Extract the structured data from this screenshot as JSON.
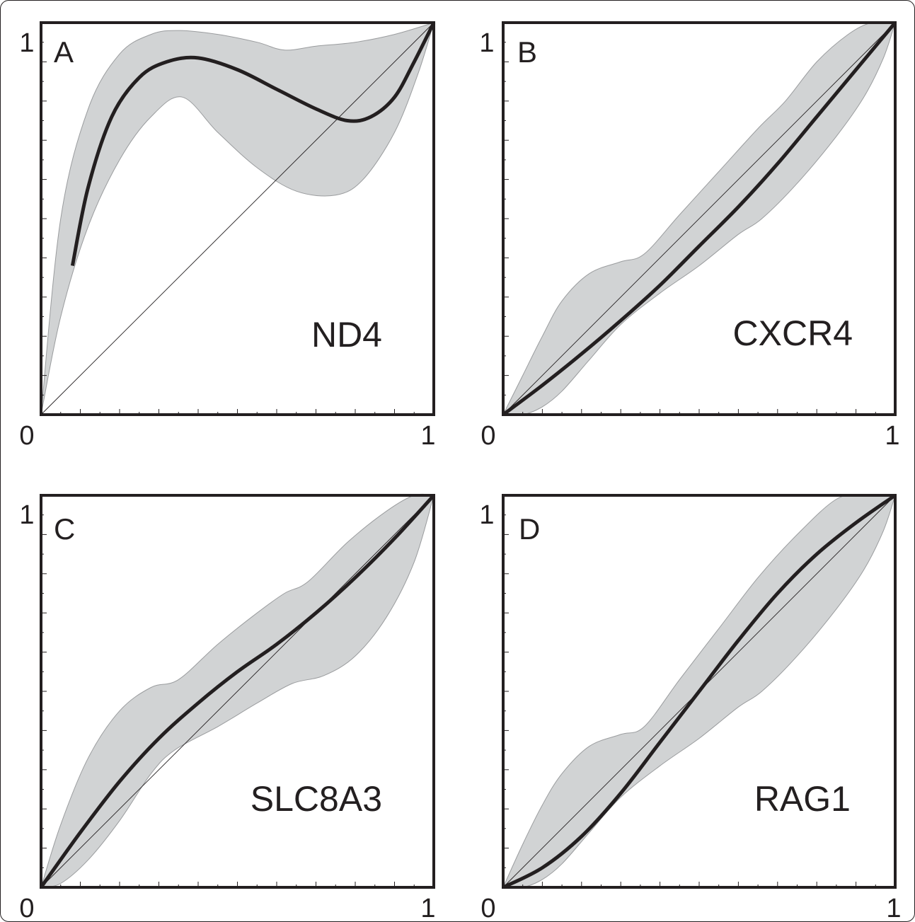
{
  "chart_data": [
    {
      "type": "line",
      "panel_letter": "A",
      "annotation": "ND4",
      "x_tick_labels": [
        "0",
        "1"
      ],
      "y_tick_labels": [
        "1"
      ],
      "xlim": [
        0,
        1
      ],
      "ylim": [
        0,
        1
      ],
      "diagonal": true,
      "band_color": "#d1d3d4",
      "line_color": "#231f20",
      "curve": {
        "x": [
          0.08,
          0.12,
          0.18,
          0.25,
          0.32,
          0.4,
          0.5,
          0.6,
          0.7,
          0.78,
          0.84,
          0.9,
          0.95,
          1.0
        ],
        "y": [
          0.38,
          0.58,
          0.76,
          0.86,
          0.9,
          0.91,
          0.88,
          0.83,
          0.78,
          0.75,
          0.76,
          0.81,
          0.9,
          1.0
        ]
      },
      "band_upper": {
        "x": [
          0.0,
          0.05,
          0.12,
          0.2,
          0.28,
          0.35,
          0.45,
          0.55,
          0.62,
          0.7,
          0.8,
          0.9,
          1.0
        ],
        "y": [
          0.0,
          0.5,
          0.78,
          0.92,
          0.97,
          0.98,
          0.97,
          0.95,
          0.93,
          0.94,
          0.95,
          0.97,
          1.0
        ]
      },
      "band_lower": {
        "x": [
          0.0,
          0.05,
          0.12,
          0.2,
          0.28,
          0.36,
          0.45,
          0.55,
          0.65,
          0.75,
          0.82,
          0.9,
          0.96,
          1.0
        ],
        "y": [
          0.0,
          0.25,
          0.48,
          0.65,
          0.76,
          0.81,
          0.72,
          0.63,
          0.57,
          0.56,
          0.6,
          0.72,
          0.87,
          1.0
        ]
      }
    },
    {
      "type": "line",
      "panel_letter": "B",
      "annotation": "CXCR4",
      "x_tick_labels": [
        "0",
        "1"
      ],
      "y_tick_labels": [
        "1"
      ],
      "xlim": [
        0,
        1
      ],
      "ylim": [
        0,
        1
      ],
      "diagonal": true,
      "band_color": "#d1d3d4",
      "line_color": "#231f20",
      "curve": {
        "x": [
          0.0,
          0.1,
          0.2,
          0.3,
          0.4,
          0.5,
          0.6,
          0.7,
          0.8,
          0.9,
          1.0
        ],
        "y": [
          0.0,
          0.075,
          0.155,
          0.24,
          0.33,
          0.43,
          0.53,
          0.64,
          0.76,
          0.88,
          1.0
        ]
      },
      "band_upper": {
        "x": [
          0.0,
          0.05,
          0.1,
          0.15,
          0.22,
          0.3,
          0.36,
          0.45,
          0.55,
          0.65,
          0.72,
          0.8,
          0.88,
          0.94,
          1.0
        ],
        "y": [
          0.0,
          0.1,
          0.2,
          0.29,
          0.36,
          0.39,
          0.41,
          0.51,
          0.62,
          0.73,
          0.8,
          0.9,
          0.97,
          1.0,
          1.0
        ]
      },
      "band_lower": {
        "x": [
          0.0,
          0.05,
          0.1,
          0.15,
          0.22,
          0.3,
          0.4,
          0.5,
          0.6,
          0.66,
          0.75,
          0.85,
          0.92,
          0.97,
          1.0
        ],
        "y": [
          0.0,
          0.0,
          0.02,
          0.06,
          0.14,
          0.23,
          0.31,
          0.38,
          0.46,
          0.5,
          0.59,
          0.71,
          0.81,
          0.91,
          1.0
        ]
      }
    },
    {
      "type": "line",
      "panel_letter": "C",
      "annotation": "SLC8A3",
      "x_tick_labels": [
        "0",
        "1"
      ],
      "y_tick_labels": [
        "1"
      ],
      "xlim": [
        0,
        1
      ],
      "ylim": [
        0,
        1
      ],
      "diagonal": true,
      "band_color": "#d1d3d4",
      "line_color": "#231f20",
      "curve": {
        "x": [
          0.0,
          0.1,
          0.2,
          0.3,
          0.4,
          0.5,
          0.6,
          0.7,
          0.8,
          0.9,
          1.0
        ],
        "y": [
          0.0,
          0.14,
          0.27,
          0.38,
          0.47,
          0.55,
          0.62,
          0.7,
          0.79,
          0.89,
          1.0
        ]
      },
      "band_upper": {
        "x": [
          0.0,
          0.05,
          0.12,
          0.2,
          0.28,
          0.35,
          0.45,
          0.55,
          0.62,
          0.68,
          0.78,
          0.88,
          0.95,
          1.0
        ],
        "y": [
          0.0,
          0.16,
          0.33,
          0.45,
          0.51,
          0.53,
          0.62,
          0.7,
          0.75,
          0.78,
          0.88,
          0.96,
          1.0,
          1.0
        ]
      },
      "band_lower": {
        "x": [
          0.0,
          0.05,
          0.12,
          0.2,
          0.28,
          0.34,
          0.45,
          0.55,
          0.64,
          0.72,
          0.8,
          0.88,
          0.95,
          1.0
        ],
        "y": [
          0.0,
          0.01,
          0.07,
          0.17,
          0.29,
          0.35,
          0.41,
          0.47,
          0.52,
          0.54,
          0.59,
          0.69,
          0.83,
          1.0
        ]
      }
    },
    {
      "type": "line",
      "panel_letter": "D",
      "annotation": "RAG1",
      "x_tick_labels": [
        "0",
        "1"
      ],
      "y_tick_labels": [
        "1"
      ],
      "xlim": [
        0,
        1
      ],
      "ylim": [
        0,
        1
      ],
      "diagonal": true,
      "band_color": "#d1d3d4",
      "line_color": "#231f20",
      "curve": {
        "x": [
          0.0,
          0.1,
          0.2,
          0.3,
          0.4,
          0.5,
          0.6,
          0.7,
          0.8,
          0.9,
          1.0
        ],
        "y": [
          0.0,
          0.05,
          0.13,
          0.24,
          0.37,
          0.5,
          0.63,
          0.75,
          0.85,
          0.93,
          1.0
        ]
      },
      "band_upper": {
        "x": [
          0.0,
          0.05,
          0.1,
          0.15,
          0.22,
          0.3,
          0.36,
          0.45,
          0.55,
          0.65,
          0.75,
          0.85,
          0.92,
          1.0
        ],
        "y": [
          0.0,
          0.11,
          0.21,
          0.29,
          0.36,
          0.39,
          0.41,
          0.53,
          0.66,
          0.79,
          0.9,
          0.99,
          1.0,
          1.0
        ]
      },
      "band_lower": {
        "x": [
          0.0,
          0.05,
          0.1,
          0.15,
          0.22,
          0.3,
          0.4,
          0.5,
          0.6,
          0.66,
          0.75,
          0.85,
          0.92,
          0.97,
          1.0
        ],
        "y": [
          0.0,
          0.0,
          0.02,
          0.06,
          0.14,
          0.23,
          0.31,
          0.38,
          0.46,
          0.5,
          0.59,
          0.71,
          0.81,
          0.91,
          1.0
        ]
      }
    }
  ]
}
